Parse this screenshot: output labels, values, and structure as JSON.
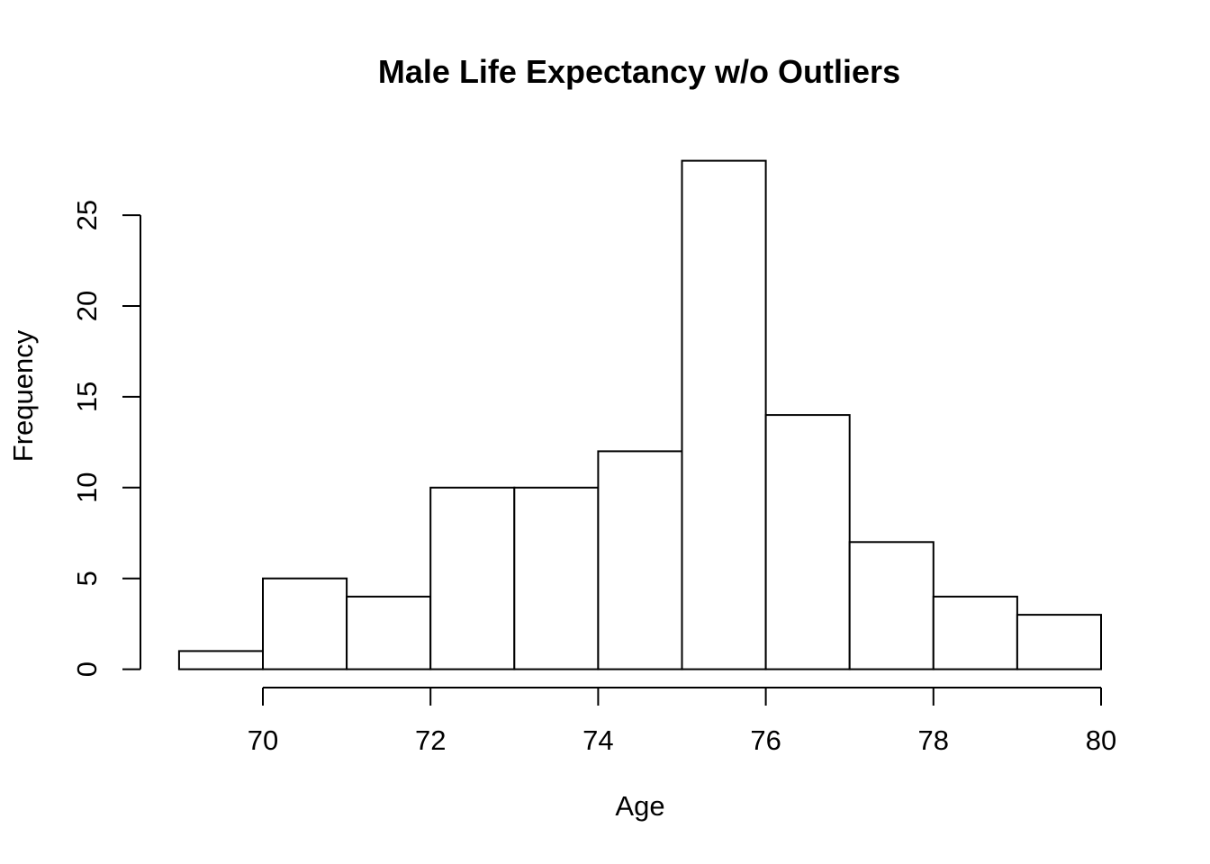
{
  "chart_data": {
    "type": "bar",
    "subtype": "histogram",
    "title": "Male Life Expectancy w/o Outliers",
    "xlabel": "Age",
    "ylabel": "Frequency",
    "bin_edges": [
      69,
      70,
      71,
      72,
      73,
      74,
      75,
      76,
      77,
      78,
      79,
      80
    ],
    "counts": [
      1,
      5,
      4,
      10,
      10,
      12,
      28,
      14,
      7,
      4,
      3
    ],
    "x_ticks": [
      70,
      72,
      74,
      76,
      78,
      80
    ],
    "y_ticks": [
      0,
      5,
      10,
      15,
      20,
      25
    ],
    "xlim": [
      69,
      80
    ],
    "ylim": [
      0,
      28
    ],
    "bar_fill": "#ffffff",
    "stroke_color": "#000000",
    "background": "#ffffff",
    "grid": false,
    "legend": false
  }
}
